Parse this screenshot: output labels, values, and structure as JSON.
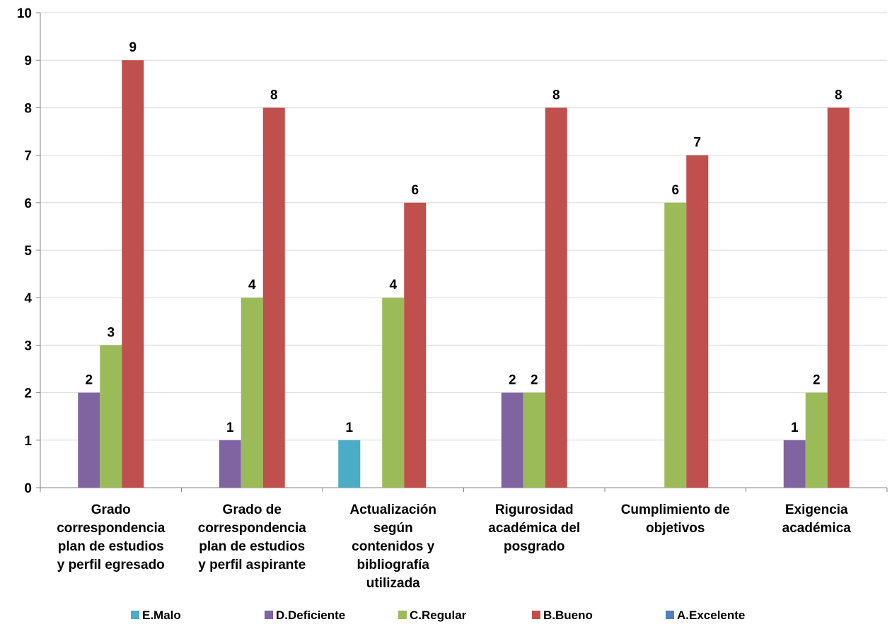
{
  "chart_data": {
    "type": "bar",
    "categories": [
      [
        "Grado",
        "correspondencia",
        "plan de estudios",
        "y perfil egresado"
      ],
      [
        "Grado de",
        "correspondencia",
        "plan de estudios",
        "y perfil aspirante"
      ],
      [
        "Actualización",
        "según",
        "contenidos y",
        "bibliografía",
        "utilizada"
      ],
      [
        "Rigurosidad",
        "académica del",
        "posgrado"
      ],
      [
        "Cumplimiento de",
        "objetivos"
      ],
      [
        "Exigencia",
        "académica"
      ]
    ],
    "series": [
      {
        "name": "E.Malo",
        "color": "#4bacc6",
        "values": [
          null,
          null,
          1,
          null,
          null,
          null
        ]
      },
      {
        "name": "D.Deficiente",
        "color": "#8064a2",
        "values": [
          2,
          1,
          null,
          2,
          null,
          1
        ]
      },
      {
        "name": "C.Regular",
        "color": "#9bbb59",
        "values": [
          3,
          4,
          4,
          2,
          6,
          2
        ]
      },
      {
        "name": "B.Bueno",
        "color": "#c0504d",
        "values": [
          9,
          8,
          6,
          8,
          7,
          8
        ]
      },
      {
        "name": "A.Excelente",
        "color": "#4f81bd",
        "values": [
          null,
          null,
          null,
          null,
          null,
          null
        ]
      }
    ],
    "yticks": [
      "0",
      "1",
      "2",
      "3",
      "4",
      "5",
      "6",
      "7",
      "8",
      "9",
      "10"
    ],
    "ylim": [
      0,
      10
    ],
    "grid": true,
    "legend_position": "bottom"
  }
}
